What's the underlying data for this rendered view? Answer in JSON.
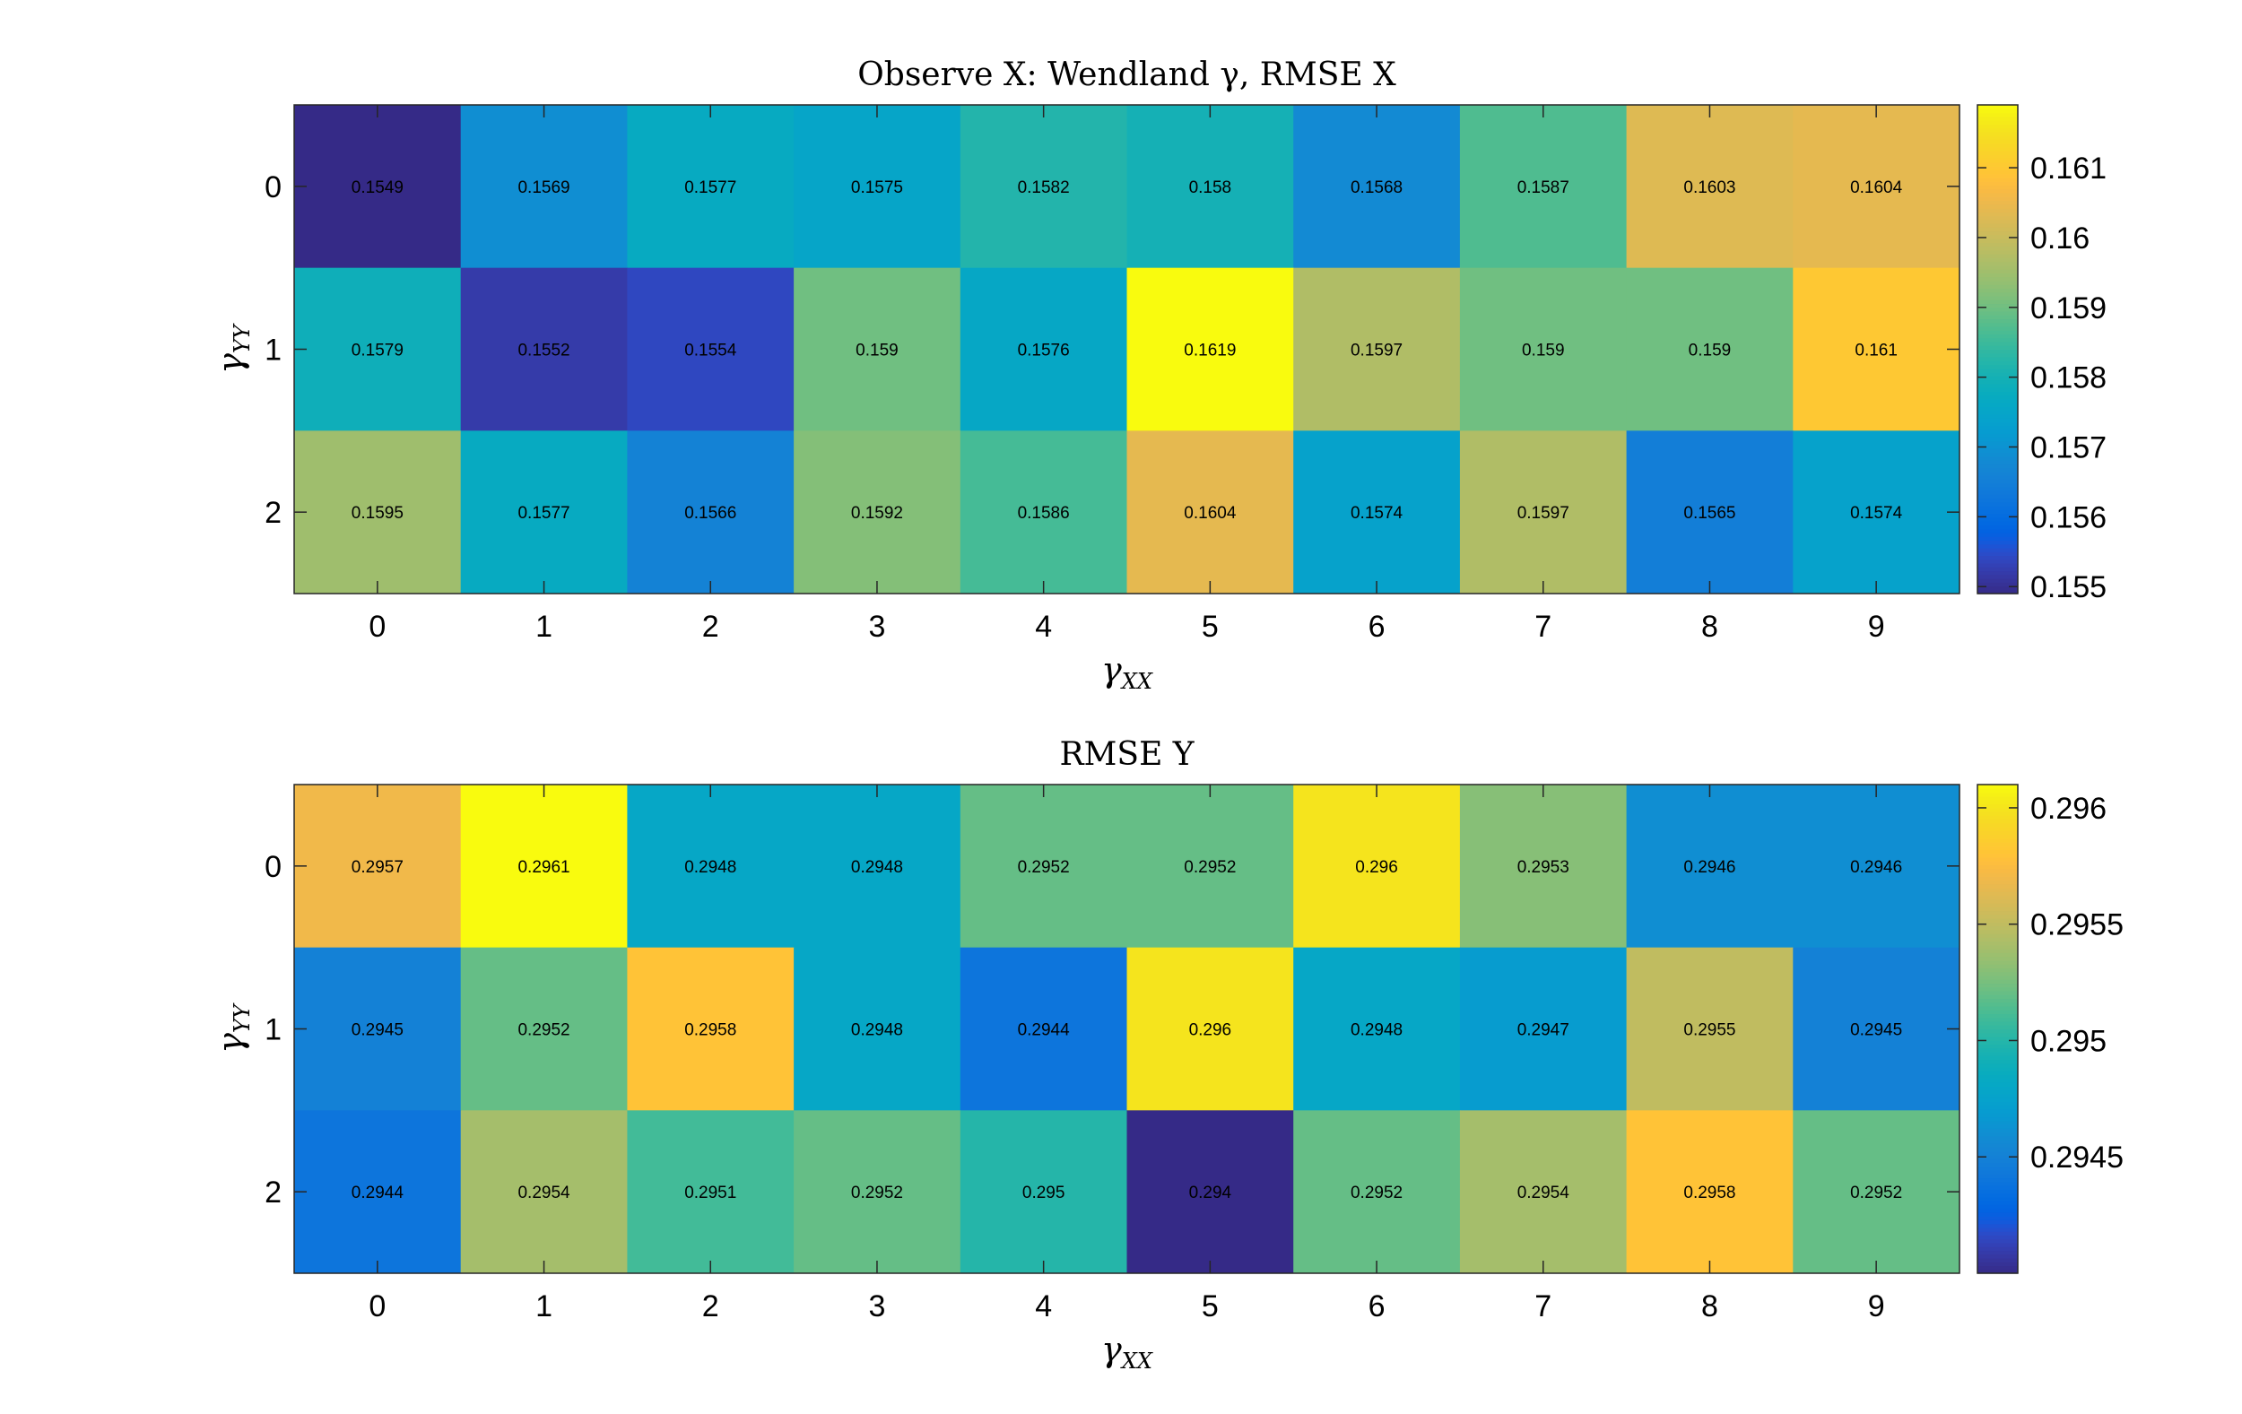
{
  "chart_data": [
    {
      "type": "heatmap",
      "title": "Observe X: Wendland γ, RMSE X",
      "xlabel": "γXX",
      "ylabel": "γYY",
      "x": [
        0,
        1,
        2,
        3,
        4,
        5,
        6,
        7,
        8,
        9
      ],
      "y": [
        0,
        1,
        2
      ],
      "values": [
        [
          0.1549,
          0.1569,
          0.1577,
          0.1575,
          0.1582,
          0.158,
          0.1568,
          0.1587,
          0.1603,
          0.1604
        ],
        [
          0.1579,
          0.1552,
          0.1554,
          0.159,
          0.1576,
          0.1619,
          0.1597,
          0.159,
          0.159,
          0.161
        ],
        [
          0.1595,
          0.1577,
          0.1566,
          0.1592,
          0.1586,
          0.1604,
          0.1574,
          0.1597,
          0.1565,
          0.1574
        ]
      ],
      "colorbar": {
        "colormap": "parula",
        "range": [
          0.1549,
          0.1619
        ],
        "ticks": [
          0.155,
          0.156,
          0.157,
          0.158,
          0.159,
          0.16,
          0.161
        ],
        "tick_labels": [
          "0.155",
          "0.156",
          "0.157",
          "0.158",
          "0.159",
          "0.16",
          "0.161"
        ]
      }
    },
    {
      "type": "heatmap",
      "title": "RMSE Y",
      "xlabel": "γXX",
      "ylabel": "γYY",
      "x": [
        0,
        1,
        2,
        3,
        4,
        5,
        6,
        7,
        8,
        9
      ],
      "y": [
        0,
        1,
        2
      ],
      "values": [
        [
          0.2957,
          0.2961,
          0.2948,
          0.2948,
          0.2952,
          0.2952,
          0.296,
          0.2953,
          0.2946,
          0.2946
        ],
        [
          0.2945,
          0.2952,
          0.2958,
          0.2948,
          0.2944,
          0.296,
          0.2948,
          0.2947,
          0.2955,
          0.2945
        ],
        [
          0.2944,
          0.2954,
          0.2951,
          0.2952,
          0.295,
          0.294,
          0.2952,
          0.2954,
          0.2958,
          0.2952
        ]
      ],
      "colorbar": {
        "colormap": "parula",
        "range": [
          0.294,
          0.2961
        ],
        "ticks": [
          0.2945,
          0.295,
          0.2955,
          0.296
        ],
        "tick_labels": [
          "0.2945",
          "0.295",
          "0.2955",
          "0.296"
        ]
      }
    }
  ]
}
